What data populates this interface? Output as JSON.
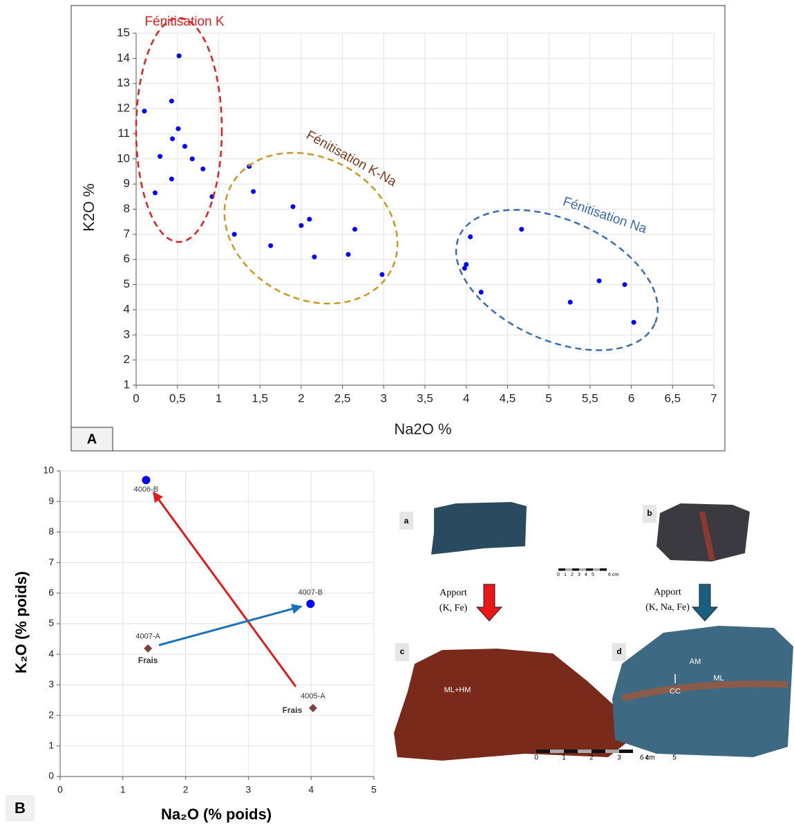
{
  "chart_data": [
    {
      "type": "scatter",
      "panel": "A",
      "xlabel": "Na2O %",
      "ylabel": "K2O %",
      "annotations": [
        "Fénitisation K",
        "Fénitisation K-Na",
        "Fénitisation Na"
      ],
      "color": "#0000ff",
      "x": [
        0.52,
        0.43,
        0.1,
        0.51,
        0.44,
        0.29,
        0.59,
        0.68,
        0.81,
        0.43,
        0.23,
        0.92,
        1.37,
        1.42,
        1.9,
        2.1,
        2.0,
        2.65,
        1.19,
        1.63,
        2.57,
        2.16,
        2.98,
        4.67,
        4.05,
        4.0,
        3.98,
        4.18,
        5.61,
        5.92,
        5.26,
        6.03
      ],
      "values": [
        14.1,
        12.3,
        11.9,
        11.2,
        10.8,
        10.1,
        10.5,
        10.0,
        9.6,
        9.2,
        8.65,
        8.5,
        9.7,
        8.7,
        8.1,
        7.6,
        7.35,
        7.2,
        7.0,
        6.55,
        6.2,
        6.1,
        5.4,
        7.2,
        6.9,
        5.8,
        5.65,
        4.7,
        5.15,
        5.0,
        4.3,
        3.5
      ],
      "xlim": [
        0,
        7
      ],
      "ylim": [
        1,
        15
      ],
      "xticks": [
        0,
        {
          "value": 0.5,
          "label": "0,5"
        },
        1,
        {
          "value": 1.5,
          "label": "1,5"
        },
        2,
        {
          "value": 2.5,
          "label": "2,5"
        },
        3,
        {
          "value": 3.5,
          "label": "3,5"
        },
        4,
        {
          "value": 4.5,
          "label": "4,5"
        },
        5,
        {
          "value": 5.5,
          "label": "5,5"
        },
        6,
        {
          "value": 6.5,
          "label": "6,5"
        },
        7
      ],
      "yticks": [
        1,
        2,
        3,
        4,
        5,
        6,
        7,
        8,
        9,
        10,
        11,
        12,
        13,
        14,
        15
      ],
      "grid": true
    },
    {
      "type": "scatter",
      "panel": "B",
      "xlabel": "Na₂O (% poids)",
      "ylabel": "K₂O (% poids)",
      "series": [
        {
          "color": "#0000ff",
          "marker": "circle",
          "x": [
            1.37,
            3.99
          ],
          "values": [
            9.7,
            5.65
          ],
          "point_labels": [
            "4006-B",
            "4007-B"
          ]
        },
        {
          "color": "#7b4040",
          "marker": "diamond",
          "x": [
            1.4,
            4.03
          ],
          "values": [
            4.19,
            2.24
          ],
          "point_labels": [
            "4007-A",
            "4005-A"
          ],
          "notes": [
            "Frais",
            "Frais"
          ]
        }
      ],
      "xlim": [
        0,
        5
      ],
      "ylim": [
        0,
        10
      ],
      "xticks": [
        0,
        1,
        2,
        3,
        4,
        5
      ],
      "yticks": [
        0,
        1,
        2,
        3,
        4,
        5,
        6,
        7,
        8,
        9,
        10
      ],
      "grid": true
    }
  ],
  "photos": {
    "labels": [
      "a",
      "b",
      "c",
      "d"
    ],
    "apport_1": [
      "Apport",
      "(K, Fe)"
    ],
    "apport_2": [
      "Apport",
      "(K, Na, Fe)"
    ],
    "rock_labels": [
      "ML+HM",
      "AM",
      "ML",
      "CC"
    ],
    "scale_numbers": [
      "0",
      "1",
      "2",
      "3",
      "4",
      "5"
    ],
    "scale_end": "6 cm"
  }
}
